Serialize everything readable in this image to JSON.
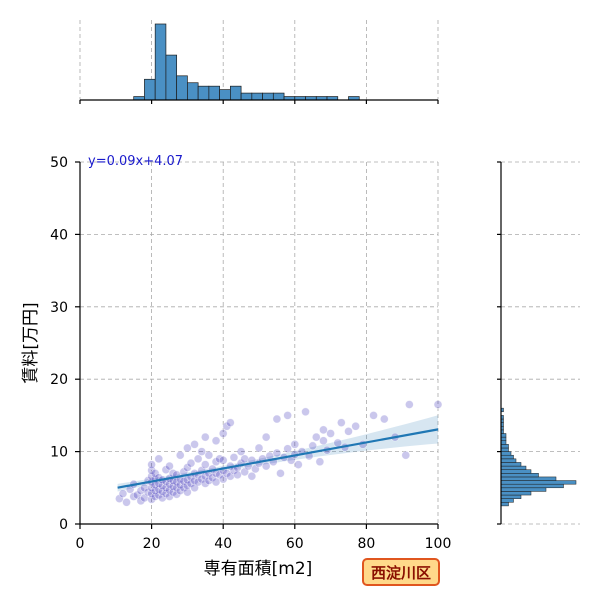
{
  "chart_data": {
    "type": "scatter",
    "xlabel": "専有面積[m2]",
    "ylabel": "賃料[万円]",
    "xlim": [
      0,
      100
    ],
    "ylim": [
      0,
      50
    ],
    "x_ticks": [
      "0",
      "20",
      "40",
      "60",
      "80",
      "100"
    ],
    "y_ticks": [
      "0",
      "10",
      "20",
      "30",
      "40",
      "50"
    ],
    "grid": true,
    "regression": {
      "label": "y=0.09x+4.07",
      "slope": 0.09,
      "intercept": 4.07,
      "x_range": [
        10.5,
        100
      ]
    },
    "region_badge": "西淀川区",
    "marginal_x_hist": {
      "bin_edges": [
        15,
        18,
        21,
        24,
        27,
        30,
        33,
        36,
        39,
        42,
        45,
        48,
        51,
        54,
        57,
        60,
        63,
        66,
        69,
        72,
        75,
        78,
        81,
        84,
        87,
        90,
        93,
        96
      ],
      "counts": [
        1,
        6,
        22,
        13,
        7,
        5,
        4,
        4,
        3,
        4,
        2,
        2,
        2,
        2,
        1,
        1,
        1,
        1,
        1,
        0,
        1,
        0,
        0,
        0,
        0,
        0,
        0
      ]
    },
    "marginal_y_hist": {
      "bin_edges": [
        2.5,
        3.0,
        3.5,
        4.0,
        4.5,
        5.0,
        5.5,
        6.0,
        6.5,
        7.0,
        7.5,
        8.0,
        8.5,
        9.0,
        9.5,
        10.0,
        10.5,
        11.0,
        11.5,
        12.0,
        12.5,
        13.0,
        13.5,
        14.0,
        14.5,
        15.0,
        15.5,
        16.0
      ],
      "counts": [
        3,
        5,
        8,
        12,
        18,
        25,
        30,
        22,
        15,
        12,
        10,
        8,
        6,
        5,
        4,
        3,
        3,
        2,
        2,
        2,
        1,
        1,
        1,
        1,
        1,
        0,
        1
      ]
    },
    "points": [
      [
        11,
        3.5
      ],
      [
        12,
        4.2
      ],
      [
        13,
        3.0
      ],
      [
        14,
        4.8
      ],
      [
        15,
        3.8
      ],
      [
        15,
        5.5
      ],
      [
        16,
        4.0
      ],
      [
        17,
        3.2
      ],
      [
        17,
        4.6
      ],
      [
        18,
        5.0
      ],
      [
        18,
        3.6
      ],
      [
        19,
        4.4
      ],
      [
        19,
        6.0
      ],
      [
        20,
        3.4
      ],
      [
        20,
        4.2
      ],
      [
        20,
        5.0
      ],
      [
        20,
        5.8
      ],
      [
        20,
        6.6
      ],
      [
        20,
        7.4
      ],
      [
        20,
        8.2
      ],
      [
        21,
        3.8
      ],
      [
        21,
        4.6
      ],
      [
        21,
        5.4
      ],
      [
        21,
        6.2
      ],
      [
        21,
        7.0
      ],
      [
        22,
        4.0
      ],
      [
        22,
        4.8
      ],
      [
        22,
        5.6
      ],
      [
        22,
        6.4
      ],
      [
        22,
        9.0
      ],
      [
        23,
        3.6
      ],
      [
        23,
        4.5
      ],
      [
        23,
        5.3
      ],
      [
        23,
        6.1
      ],
      [
        24,
        4.2
      ],
      [
        24,
        5.0
      ],
      [
        24,
        5.9
      ],
      [
        24,
        7.5
      ],
      [
        25,
        3.8
      ],
      [
        25,
        4.7
      ],
      [
        25,
        5.5
      ],
      [
        25,
        6.3
      ],
      [
        25,
        8.0
      ],
      [
        26,
        4.4
      ],
      [
        26,
        5.2
      ],
      [
        26,
        6.0
      ],
      [
        26,
        7.0
      ],
      [
        27,
        4.1
      ],
      [
        27,
        5.0
      ],
      [
        27,
        5.8
      ],
      [
        27,
        6.8
      ],
      [
        28,
        4.6
      ],
      [
        28,
        5.4
      ],
      [
        28,
        6.2
      ],
      [
        28,
        9.5
      ],
      [
        29,
        5.0
      ],
      [
        29,
        5.9
      ],
      [
        29,
        7.2
      ],
      [
        30,
        4.4
      ],
      [
        30,
        5.3
      ],
      [
        30,
        6.1
      ],
      [
        30,
        7.8
      ],
      [
        30,
        10.5
      ],
      [
        31,
        5.6
      ],
      [
        31,
        6.5
      ],
      [
        31,
        8.4
      ],
      [
        32,
        5.0
      ],
      [
        32,
        6.0
      ],
      [
        32,
        7.0
      ],
      [
        32,
        11.0
      ],
      [
        33,
        5.8
      ],
      [
        33,
        6.8
      ],
      [
        33,
        9.0
      ],
      [
        34,
        6.2
      ],
      [
        34,
        7.4
      ],
      [
        34,
        10.0
      ],
      [
        35,
        5.6
      ],
      [
        35,
        6.6
      ],
      [
        35,
        8.2
      ],
      [
        35,
        12.0
      ],
      [
        36,
        6.0
      ],
      [
        36,
        7.0
      ],
      [
        36,
        9.5
      ],
      [
        37,
        6.4
      ],
      [
        37,
        7.6
      ],
      [
        38,
        5.8
      ],
      [
        38,
        7.0
      ],
      [
        38,
        8.6
      ],
      [
        38,
        11.5
      ],
      [
        39,
        6.8
      ],
      [
        39,
        9.0
      ],
      [
        40,
        6.2
      ],
      [
        40,
        7.4
      ],
      [
        40,
        8.8
      ],
      [
        40,
        12.5
      ],
      [
        41,
        7.0
      ],
      [
        41,
        13.5
      ],
      [
        42,
        6.6
      ],
      [
        42,
        8.0
      ],
      [
        42,
        14.0
      ],
      [
        43,
        7.4
      ],
      [
        43,
        9.2
      ],
      [
        44,
        7.8
      ],
      [
        44,
        6.8
      ],
      [
        45,
        8.4
      ],
      [
        45,
        10.0
      ],
      [
        46,
        7.2
      ],
      [
        46,
        9.0
      ],
      [
        47,
        8.0
      ],
      [
        48,
        6.6
      ],
      [
        48,
        8.8
      ],
      [
        49,
        7.6
      ],
      [
        50,
        8.4
      ],
      [
        50,
        10.5
      ],
      [
        51,
        9.0
      ],
      [
        52,
        8.0
      ],
      [
        52,
        12.0
      ],
      [
        53,
        9.4
      ],
      [
        54,
        8.6
      ],
      [
        55,
        9.8
      ],
      [
        55,
        14.5
      ],
      [
        56,
        7.0
      ],
      [
        57,
        9.2
      ],
      [
        58,
        10.4
      ],
      [
        58,
        15.0
      ],
      [
        59,
        8.8
      ],
      [
        60,
        9.6
      ],
      [
        60,
        11.0
      ],
      [
        61,
        8.2
      ],
      [
        62,
        10.0
      ],
      [
        63,
        15.5
      ],
      [
        64,
        9.4
      ],
      [
        65,
        10.8
      ],
      [
        66,
        12.0
      ],
      [
        67,
        8.6
      ],
      [
        68,
        11.5
      ],
      [
        68,
        13.0
      ],
      [
        69,
        10.2
      ],
      [
        70,
        12.5
      ],
      [
        72,
        11.2
      ],
      [
        73,
        14.0
      ],
      [
        74,
        10.6
      ],
      [
        75,
        12.8
      ],
      [
        77,
        13.5
      ],
      [
        79,
        11.0
      ],
      [
        82,
        15.0
      ],
      [
        85,
        14.5
      ],
      [
        88,
        12.0
      ],
      [
        91,
        9.5
      ],
      [
        92,
        16.5
      ],
      [
        100,
        16.5
      ]
    ]
  }
}
